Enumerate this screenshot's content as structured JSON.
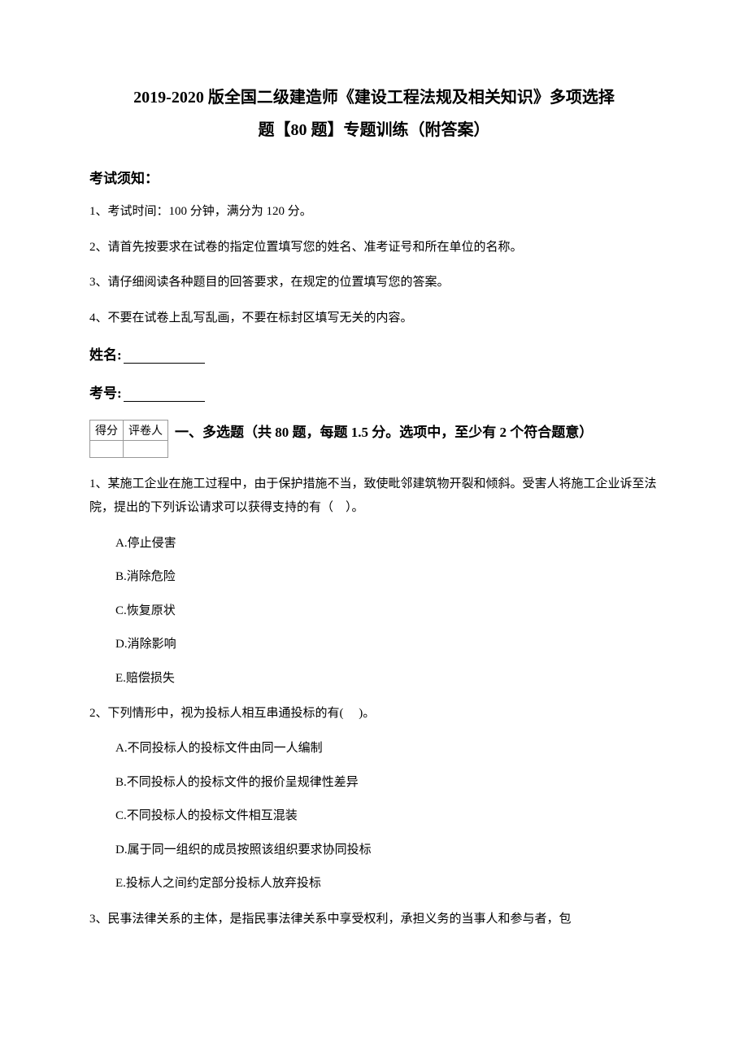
{
  "title_line1": "2019-2020 版全国二级建造师《建设工程法规及相关知识》多项选择",
  "title_line2": "题【80 题】专题训练（附答案）",
  "exam_notice_label": "考试须知：",
  "instructions": [
    "1、考试时间：100 分钟，满分为 120 分。",
    "2、请首先按要求在试卷的指定位置填写您的姓名、准考证号和所在单位的名称。",
    "3、请仔细阅读各种题目的回答要求，在规定的位置填写您的答案。",
    "4、不要在试卷上乱写乱画，不要在标封区填写无关的内容。"
  ],
  "name_label": "姓名:",
  "id_label": "考号:",
  "score_table": {
    "header1": "得分",
    "header2": "评卷人"
  },
  "section_heading": "一、多选题（共 80 题，每题 1.5 分。选项中，至少有 2 个符合题意）",
  "questions": [
    {
      "stem": "1、某施工企业在施工过程中，由于保护措施不当，致使毗邻建筑物开裂和倾斜。受害人将施工企业诉至法院，提出的下列诉讼请求可以获得支持的有（　）。",
      "options": [
        "A.停止侵害",
        "B.消除危险",
        "C.恢复原状",
        "D.消除影响",
        "E.赔偿损失"
      ]
    },
    {
      "stem": "2、下列情形中，视为投标人相互串通投标的有(　 )。",
      "options": [
        "A.不同投标人的投标文件由同一人编制",
        "B.不同投标人的投标文件的报价呈规律性差异",
        "C.不同投标人的投标文件相互混装",
        "D.属于同一组织的成员按照该组织要求协同投标",
        "E.投标人之间约定部分投标人放弃投标"
      ]
    },
    {
      "stem": "3、民事法律关系的主体，是指民事法律关系中享受权利，承担义务的当事人和参与者，包",
      "options": []
    }
  ]
}
